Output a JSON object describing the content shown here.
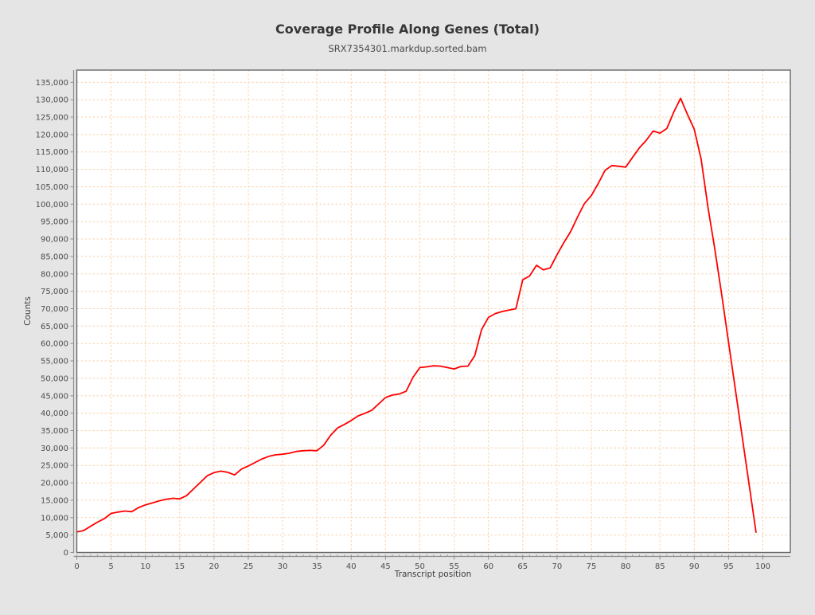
{
  "page": {
    "background": "#e5e5e5"
  },
  "header": {
    "title": "Coverage Profile Along Genes (Total)",
    "subtitle": "SRX7354301.markdup.sorted.bam"
  },
  "style": {
    "plot_bg": "#ffffff",
    "grid_color": "#f8d2ab",
    "frame_color": "#686868",
    "axis_color": "#8f8f8f",
    "tick_label_color": "#4d4d4d",
    "title_color": "#373737",
    "subtitle_color": "#4a4a4a",
    "axis_title_color": "#404040",
    "line_color": "#ff0000"
  },
  "chart_data": {
    "type": "line",
    "title": "Coverage Profile Along Genes (Total)",
    "subtitle": "SRX7354301.markdup.sorted.bam",
    "xlabel": "Transcript position",
    "ylabel": "Counts",
    "xlim": [
      0,
      104
    ],
    "ylim": [
      0,
      138500
    ],
    "x_tick_major_step": 5,
    "x_tick_minor_step": 1,
    "x_tick_max": 100,
    "y_tick_major_step": 5000,
    "y_tick_max": 135000,
    "grid": "dashed peach gridlines at every major tick, horizontal and vertical",
    "legend_position": "none",
    "series": [
      {
        "name": "SRX7354301.markdup.sorted.bam",
        "color": "#ff0000",
        "points": [
          [
            0,
            5900
          ],
          [
            1,
            6300
          ],
          [
            2,
            7500
          ],
          [
            3,
            8700
          ],
          [
            4,
            9700
          ],
          [
            5,
            11200
          ],
          [
            6,
            11600
          ],
          [
            7,
            11900
          ],
          [
            8,
            11700
          ],
          [
            9,
            12900
          ],
          [
            10,
            13650
          ],
          [
            11,
            14200
          ],
          [
            12,
            14800
          ],
          [
            13,
            15250
          ],
          [
            14,
            15550
          ],
          [
            15,
            15400
          ],
          [
            16,
            16300
          ],
          [
            17,
            18200
          ],
          [
            18,
            20100
          ],
          [
            19,
            22000
          ],
          [
            20,
            22950
          ],
          [
            21,
            23350
          ],
          [
            22,
            23000
          ],
          [
            23,
            22250
          ],
          [
            24,
            23950
          ],
          [
            25,
            24850
          ],
          [
            26,
            25850
          ],
          [
            27,
            26850
          ],
          [
            28,
            27600
          ],
          [
            29,
            28050
          ],
          [
            30,
            28200
          ],
          [
            31,
            28500
          ],
          [
            32,
            29000
          ],
          [
            33,
            29200
          ],
          [
            34,
            29300
          ],
          [
            35,
            29200
          ],
          [
            36,
            30800
          ],
          [
            37,
            33650
          ],
          [
            38,
            35750
          ],
          [
            39,
            36750
          ],
          [
            40,
            37900
          ],
          [
            41,
            39200
          ],
          [
            42,
            39950
          ],
          [
            43,
            40850
          ],
          [
            44,
            42650
          ],
          [
            45,
            44500
          ],
          [
            46,
            45200
          ],
          [
            47,
            45500
          ],
          [
            48,
            46300
          ],
          [
            49,
            50300
          ],
          [
            50,
            53100
          ],
          [
            51,
            53300
          ],
          [
            52,
            53600
          ],
          [
            53,
            53500
          ],
          [
            54,
            53100
          ],
          [
            55,
            52700
          ],
          [
            56,
            53400
          ],
          [
            57,
            53500
          ],
          [
            58,
            56500
          ],
          [
            59,
            64000
          ],
          [
            60,
            67500
          ],
          [
            61,
            68600
          ],
          [
            62,
            69200
          ],
          [
            63,
            69600
          ],
          [
            64,
            70000
          ],
          [
            65,
            78300
          ],
          [
            66,
            79400
          ],
          [
            67,
            82450
          ],
          [
            68,
            81150
          ],
          [
            69,
            81700
          ],
          [
            70,
            85500
          ],
          [
            71,
            89000
          ],
          [
            72,
            92200
          ],
          [
            73,
            96400
          ],
          [
            74,
            100200
          ],
          [
            75,
            102500
          ],
          [
            76,
            105900
          ],
          [
            77,
            109750
          ],
          [
            78,
            111100
          ],
          [
            79,
            110900
          ],
          [
            80,
            110650
          ],
          [
            81,
            113400
          ],
          [
            82,
            116200
          ],
          [
            83,
            118350
          ],
          [
            84,
            121000
          ],
          [
            85,
            120400
          ],
          [
            86,
            121700
          ],
          [
            87,
            126400
          ],
          [
            88,
            130400
          ],
          [
            89,
            125800
          ],
          [
            90,
            121500
          ],
          [
            91,
            113000
          ],
          [
            92,
            99000
          ],
          [
            93,
            87000
          ],
          [
            94,
            74000
          ],
          [
            95,
            60300
          ],
          [
            96,
            46700
          ],
          [
            97,
            33000
          ],
          [
            98,
            19400
          ],
          [
            99,
            5800
          ]
        ]
      }
    ]
  }
}
